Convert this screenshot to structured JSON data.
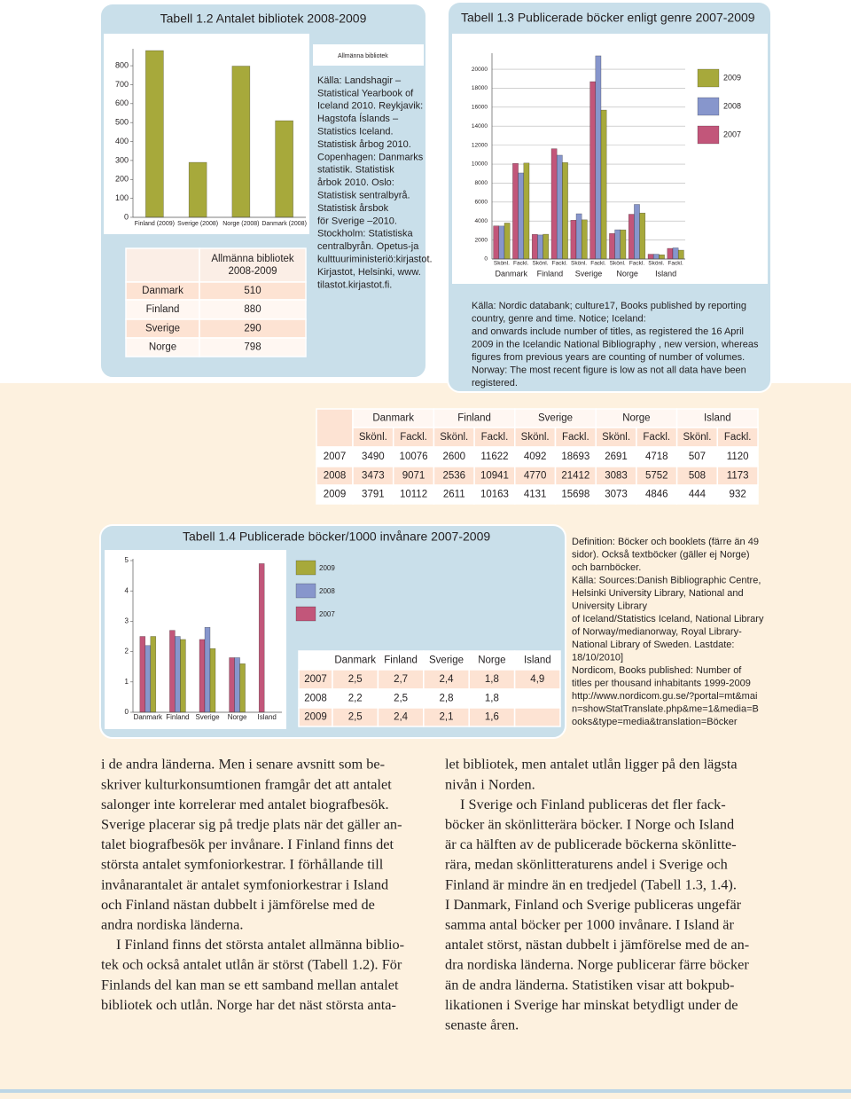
{
  "chart_data": [
    {
      "type": "bar",
      "title": "Tabell 1.2 Antalet bibliotek 2008-2009",
      "categories": [
        "Finland (2009)",
        "Sverige (2008)",
        "Norge (2008)",
        "Danmark (2008)"
      ],
      "series": [
        {
          "name": "Allmänna bibliotek",
          "color": "#a7a93b",
          "values": [
            880,
            290,
            798,
            510
          ]
        }
      ],
      "ylim": [
        0,
        880
      ],
      "yticks": [
        0,
        100,
        200,
        300,
        400,
        500,
        600,
        700,
        800
      ],
      "grid": false
    },
    {
      "type": "bar",
      "title": "Tabell 1.3 Publicerade böcker enligt genre 2007-2009",
      "categories": [
        "Skönl.",
        "Fackl.",
        "Skönl.",
        "Fackl.",
        "Skönl.",
        "Fackl.",
        "Skönl.",
        "Fackl.",
        "Skönl.",
        "Fackl."
      ],
      "groups": [
        "Danmark",
        "Finland",
        "Sverige",
        "Norge",
        "Island"
      ],
      "series": [
        {
          "name": "2007",
          "color": "#c2567a",
          "values": [
            3490,
            10076,
            2600,
            11622,
            4092,
            18693,
            2691,
            4718,
            507,
            1120
          ]
        },
        {
          "name": "2008",
          "color": "#8796cc",
          "values": [
            3473,
            9071,
            2536,
            10941,
            4770,
            21412,
            3083,
            5752,
            508,
            1173
          ]
        },
        {
          "name": "2009",
          "color": "#a7a93b",
          "values": [
            3791,
            10112,
            2611,
            10163,
            4131,
            15698,
            3073,
            4846,
            444,
            932
          ]
        }
      ],
      "ylim": [
        0,
        21500
      ],
      "yticks": [
        0,
        2000,
        4000,
        6000,
        8000,
        10000,
        12000,
        14000,
        16000,
        18000,
        20000
      ],
      "grid": true
    },
    {
      "type": "bar",
      "title": "Tabell 1.4 Publicerade böcker/1000 invånare 2007-2009",
      "categories": [
        "Danmark",
        "Finland",
        "Sverige",
        "Norge",
        "Island"
      ],
      "series": [
        {
          "name": "2007",
          "color": "#c2567a",
          "values": [
            2.5,
            2.7,
            2.4,
            1.8,
            4.9
          ]
        },
        {
          "name": "2008",
          "color": "#8796cc",
          "values": [
            2.2,
            2.5,
            2.8,
            1.8,
            null
          ]
        },
        {
          "name": "2009",
          "color": "#a7a93b",
          "values": [
            2.5,
            2.4,
            2.1,
            1.6,
            null
          ]
        }
      ],
      "ylim": [
        0,
        5
      ],
      "yticks": [
        0,
        1,
        2,
        3,
        4,
        5
      ],
      "grid": false
    }
  ],
  "tables": {
    "t12": {
      "header": [
        "Allmänna bibliotek",
        "2008-2009"
      ],
      "rows": [
        [
          "Danmark",
          "510"
        ],
        [
          "Finland",
          "880"
        ],
        [
          "Sverige",
          "290"
        ],
        [
          "Norge",
          "798"
        ]
      ]
    },
    "t13": {
      "countries": [
        "Danmark",
        "Finland",
        "Sverige",
        "Norge",
        "Island"
      ],
      "subheaders": [
        "Skönl.",
        "Fackl.",
        "Skönl.",
        "Fackl.",
        "Skönl.",
        "Fackl.",
        "Skönl.",
        "Fackl.",
        "Skönl.",
        "Fackl."
      ],
      "rows": [
        [
          "2007",
          "3490",
          "10076",
          "2600",
          "11622",
          "4092",
          "18693",
          "2691",
          "4718",
          "507",
          "1120"
        ],
        [
          "2008",
          "3473",
          "9071",
          "2536",
          "10941",
          "4770",
          "21412",
          "3083",
          "5752",
          "508",
          "1173"
        ],
        [
          "2009",
          "3791",
          "10112",
          "2611",
          "10163",
          "4131",
          "15698",
          "3073",
          "4846",
          "444",
          "932"
        ]
      ]
    },
    "t14": {
      "header": [
        "Danmark",
        "Finland",
        "Sverige",
        "Norge",
        "Island"
      ],
      "rows": [
        [
          "2007",
          "2,5",
          "2,7",
          "2,4",
          "1,8",
          "4,9"
        ],
        [
          "2008",
          "2,2",
          "2,5",
          "2,8",
          "1,8"
        ],
        [
          "2009",
          "2,5",
          "2,4",
          "2,1",
          "1,6"
        ]
      ]
    }
  },
  "sources": {
    "s12": [
      "Källa: Landshagir –",
      "Statistical Yearbook of",
      "Iceland 2010. Reykjavik:",
      "Hagstofa Íslands –",
      "Statistics Iceland.",
      "Statistisk årbog 2010.",
      "Copenhagen: Danmarks",
      "statistik. Statistisk",
      "årbok 2010. Oslo:",
      "Statistisk sentralbyrå.",
      "Statistisk årsbok",
      "för Sverige –2010.",
      "Stockholm: Statistiska",
      "centralbyrån. Opetus-ja",
      "kulttuuriministeriö:kirjastot.",
      "Kirjastot, Helsinki, www.",
      "tilastot.kirjastot.fi."
    ],
    "s13": [
      "Källa: Nordic databank; culture17, Books published by reporting",
      "country, genre and time. Notice; Iceland:",
      "and onwards include number of titles, as registered the 16 April",
      "2009 in the Icelandic National Bibliography , new version, whereas",
      "figures from previous years are counting of number of volumes.",
      "Norway: The most recent figure is low as not all data have been",
      "registered."
    ],
    "s14": [
      "Definition: Böcker och booklets (färre än 49",
      "sidor). Också textböcker (gäller ej Norge)",
      "och barnböcker.",
      "Källa: Sources:Danish Bibliographic Centre,",
      "Helsinki University Library, National and",
      "University Library",
      "of Iceland/Statistics Iceland, National Library",
      "of Norway/medianorway, Royal Library-",
      "National Library of Sweden. Lastdate:",
      "18/10/2010]",
      "Nordicom, Books published: Number of",
      "titles per thousand inhabitants 1999-2009",
      "http://www.nordicom.gu.se/?portal=mt&mai",
      "n=showStatTranslate.php&me=1&media=B",
      "ooks&type=media&translation=Böcker"
    ]
  },
  "body": {
    "left": [
      [
        "i de andra länderna. Men i senare avsnitt som be-",
        "skriver kulturkonsumtionen framgår det att antalet",
        "salonger inte korrelerar med antalet biografbesök.",
        "Sverige placerar sig på tredje plats när det gäller an-",
        "talet biografbesök per invånare. I Finland finns det",
        "största antalet symfoniorkestrar. I förhållande till",
        "invånarantalet är antalet symfoniorkestrar i Island",
        "och Finland nästan dubbelt i jämförelse med de",
        "andra nordiska länderna."
      ],
      [
        "I Finland finns det största antalet allmänna biblio-",
        "tek och också antalet utlån är störst (Tabell 1.2). För",
        "Finlands del kan man se ett samband mellan antalet",
        "bibliotek och utlån. Norge har det näst största anta-"
      ]
    ],
    "right": [
      [
        "let bibliotek, men antalet utlån ligger på den lägsta",
        "nivån i Norden."
      ],
      [
        "I Sverige och Finland publiceras det fler fack-",
        "böcker än skönlitterära böcker. I Norge och Island",
        "är ca hälften av de publicerade böckerna skönlitte-",
        "rära, medan skönlitteraturens andel i Sverige och",
        "Finland är mindre än en tredjedel (Tabell 1.3, 1.4).",
        "I Danmark, Finland och Sverige publiceras ungefär",
        "samma antal böcker per 1000 invånare.  I Island är",
        "antalet störst, nästan dubbelt i jämförelse med de an-",
        "dra nordiska länderna. Norge publicerar färre böcker",
        "än de andra länderna. Statistiken visar att bokpub-",
        "likationen i Sverige har minskat betydligt under de",
        "senaste åren."
      ]
    ]
  }
}
